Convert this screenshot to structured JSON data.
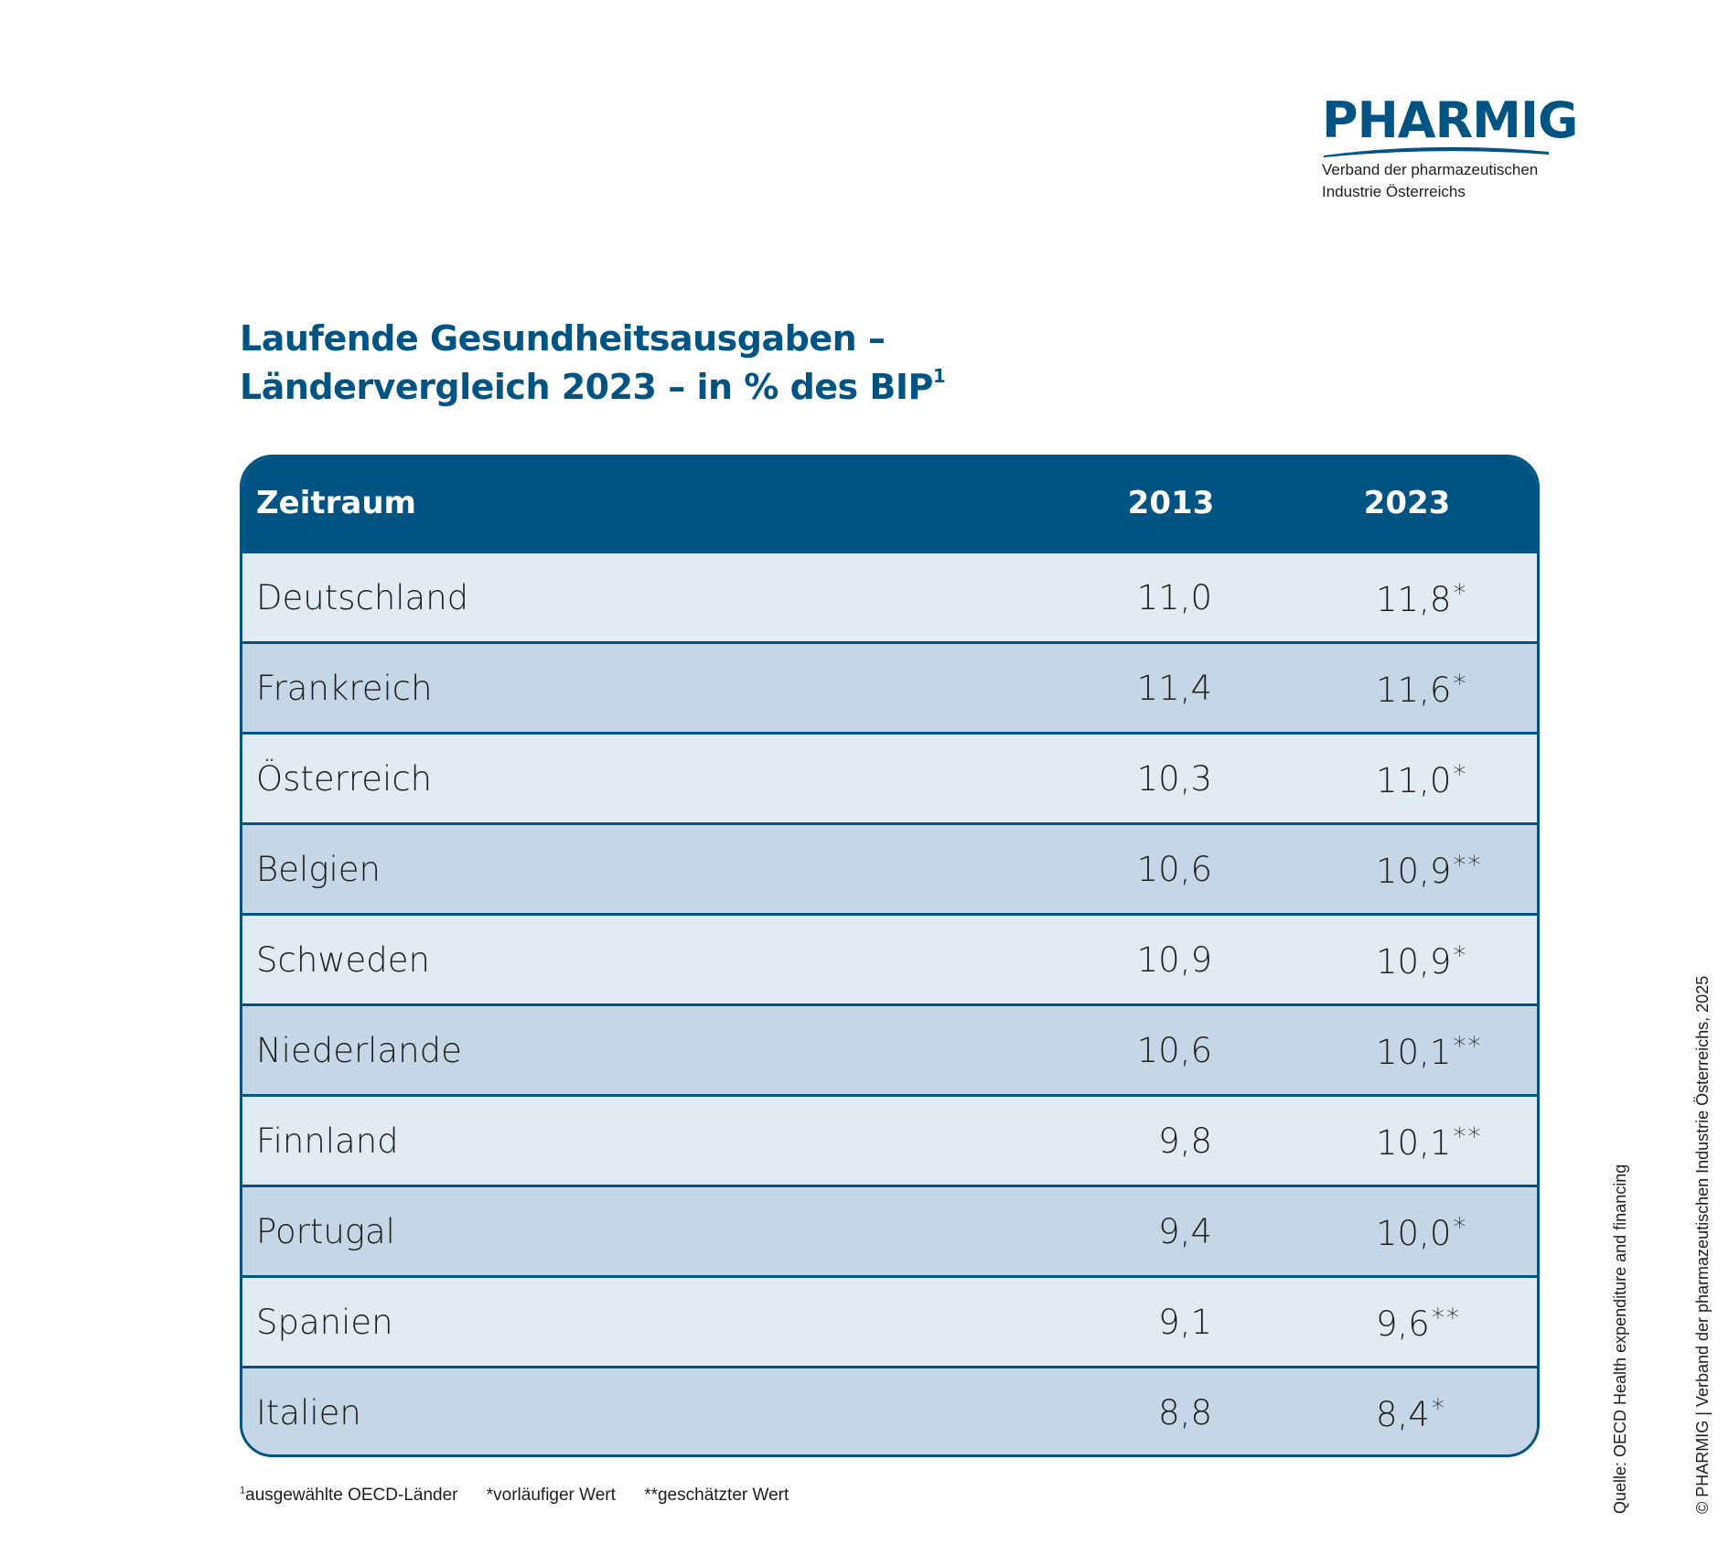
{
  "logo": {
    "wordmark": "PHARMIG",
    "line1": "Verband der pharmazeutischen",
    "line2": "Industrie Österreichs"
  },
  "title": {
    "line1": "Laufende Gesundheitsausgaben –",
    "line2": "Ländervergleich 2023 – in % des BIP",
    "footnote_mark": "1"
  },
  "chart_data": {
    "type": "table",
    "columns": [
      "Zeitraum",
      "2013",
      "2023"
    ],
    "rows": [
      {
        "country": "Deutschland",
        "v2013": "11,0",
        "v2023": "11,8",
        "mark": "*"
      },
      {
        "country": "Frankreich",
        "v2013": "11,4",
        "v2023": "11,6",
        "mark": "*"
      },
      {
        "country": "Österreich",
        "v2013": "10,3",
        "v2023": "11,0",
        "mark": "*"
      },
      {
        "country": "Belgien",
        "v2013": "10,6",
        "v2023": "10,9",
        "mark": "**"
      },
      {
        "country": "Schweden",
        "v2013": "10,9",
        "v2023": "10,9",
        "mark": "*"
      },
      {
        "country": "Niederlande",
        "v2013": "10,6",
        "v2023": "10,1",
        "mark": "**"
      },
      {
        "country": "Finnland",
        "v2013": "9,8",
        "v2023": "10,1",
        "mark": "**"
      },
      {
        "country": "Portugal",
        "v2013": "9,4",
        "v2023": "10,0",
        "mark": "*"
      },
      {
        "country": "Spanien",
        "v2013": "9,1",
        "v2023": "9,6",
        "mark": "**"
      },
      {
        "country": "Italien",
        "v2013": "8,8",
        "v2023": "8,4",
        "mark": "*"
      }
    ]
  },
  "footnotes": {
    "f1_mark": "1",
    "f1": "ausgewählte OECD-Länder",
    "f2": "*vorläufiger Wert",
    "f3": "**geschätzter Wert"
  },
  "side": {
    "source": "Quelle: OECD Health expenditure and financing",
    "copyright": "© PHARMIG | Verband der pharmazeutischen Industrie Österreichs, 2025"
  },
  "colors": {
    "brand": "#005483",
    "row_light": "#e1ebf4",
    "row_dark": "#c5d6e7"
  }
}
